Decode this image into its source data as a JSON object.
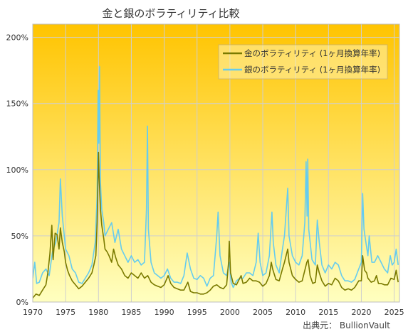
{
  "chart_data": {
    "type": "line",
    "title": "金と銀のボラティリティ比較",
    "xlabel": "",
    "ylabel": "",
    "xlim": [
      1970,
      2025.8
    ],
    "ylim": [
      0,
      210
    ],
    "x_ticks": [
      1970,
      1975,
      1980,
      1985,
      1990,
      1995,
      2000,
      2005,
      2010,
      2015,
      2020,
      2025
    ],
    "x_tick_labels": [
      "1970",
      "1975",
      "1980",
      "1985",
      "1990",
      "1995",
      "2000",
      "2005",
      "2010",
      "2015",
      "2020",
      "2025"
    ],
    "y_ticks": [
      0,
      50,
      100,
      150,
      200
    ],
    "y_tick_labels": [
      "0%",
      "50%",
      "100%",
      "150%",
      "200%"
    ],
    "grid": true,
    "legend_position": "top-right",
    "background_gradient": [
      "#ffc400",
      "#ffffc0"
    ],
    "series": [
      {
        "name": "金のボラティリティ (1ヶ月換算年率)",
        "color": "#7a7a00",
        "points": [
          [
            1970.0,
            3
          ],
          [
            1970.5,
            6
          ],
          [
            1971.0,
            5
          ],
          [
            1971.5,
            9
          ],
          [
            1972.0,
            13
          ],
          [
            1972.3,
            22
          ],
          [
            1972.6,
            36
          ],
          [
            1972.9,
            58
          ],
          [
            1973.1,
            32
          ],
          [
            1973.4,
            52
          ],
          [
            1973.7,
            51
          ],
          [
            1974.0,
            40
          ],
          [
            1974.2,
            56
          ],
          [
            1974.5,
            45
          ],
          [
            1974.8,
            38
          ],
          [
            1975.0,
            30
          ],
          [
            1975.3,
            24
          ],
          [
            1975.6,
            20
          ],
          [
            1976.0,
            16
          ],
          [
            1976.5,
            13
          ],
          [
            1977.0,
            10
          ],
          [
            1977.5,
            12
          ],
          [
            1978.0,
            15
          ],
          [
            1978.5,
            18
          ],
          [
            1979.0,
            22
          ],
          [
            1979.3,
            28
          ],
          [
            1979.6,
            35
          ],
          [
            1979.8,
            60
          ],
          [
            1980.0,
            113
          ],
          [
            1980.1,
            95
          ],
          [
            1980.3,
            70
          ],
          [
            1980.5,
            58
          ],
          [
            1980.8,
            48
          ],
          [
            1981.0,
            40
          ],
          [
            1981.3,
            38
          ],
          [
            1981.6,
            35
          ],
          [
            1982.0,
            30
          ],
          [
            1982.3,
            40
          ],
          [
            1982.6,
            34
          ],
          [
            1983.0,
            28
          ],
          [
            1983.5,
            25
          ],
          [
            1984.0,
            20
          ],
          [
            1984.5,
            18
          ],
          [
            1985.0,
            22
          ],
          [
            1985.5,
            20
          ],
          [
            1986.0,
            18
          ],
          [
            1986.5,
            22
          ],
          [
            1987.0,
            18
          ],
          [
            1987.5,
            20
          ],
          [
            1988.0,
            15
          ],
          [
            1988.5,
            13
          ],
          [
            1989.0,
            12
          ],
          [
            1989.5,
            11
          ],
          [
            1990.0,
            13
          ],
          [
            1990.6,
            20
          ],
          [
            1991.0,
            14
          ],
          [
            1991.5,
            11
          ],
          [
            1992.0,
            10
          ],
          [
            1992.5,
            9
          ],
          [
            1993.0,
            9
          ],
          [
            1993.6,
            15
          ],
          [
            1994.0,
            8
          ],
          [
            1994.5,
            7
          ],
          [
            1995.0,
            7
          ],
          [
            1995.5,
            6
          ],
          [
            1996.0,
            6
          ],
          [
            1996.5,
            7
          ],
          [
            1997.0,
            9
          ],
          [
            1997.5,
            12
          ],
          [
            1998.0,
            13
          ],
          [
            1998.5,
            11
          ],
          [
            1999.0,
            10
          ],
          [
            1999.5,
            13
          ],
          [
            1999.8,
            30
          ],
          [
            1999.9,
            46
          ],
          [
            2000.1,
            22
          ],
          [
            2000.5,
            14
          ],
          [
            2001.0,
            13
          ],
          [
            2001.7,
            20
          ],
          [
            2002.0,
            14
          ],
          [
            2002.5,
            15
          ],
          [
            2003.0,
            18
          ],
          [
            2003.5,
            16
          ],
          [
            2004.0,
            16
          ],
          [
            2004.5,
            15
          ],
          [
            2005.0,
            12
          ],
          [
            2005.5,
            14
          ],
          [
            2006.0,
            20
          ],
          [
            2006.3,
            30
          ],
          [
            2006.5,
            25
          ],
          [
            2007.0,
            17
          ],
          [
            2007.5,
            16
          ],
          [
            2008.0,
            25
          ],
          [
            2008.3,
            30
          ],
          [
            2008.8,
            40
          ],
          [
            2009.0,
            30
          ],
          [
            2009.5,
            20
          ],
          [
            2010.0,
            17
          ],
          [
            2010.5,
            15
          ],
          [
            2011.0,
            16
          ],
          [
            2011.7,
            30
          ],
          [
            2011.9,
            32
          ],
          [
            2012.2,
            20
          ],
          [
            2012.6,
            14
          ],
          [
            2013.0,
            15
          ],
          [
            2013.3,
            28
          ],
          [
            2013.6,
            22
          ],
          [
            2014.0,
            16
          ],
          [
            2014.5,
            12
          ],
          [
            2015.0,
            14
          ],
          [
            2015.5,
            13
          ],
          [
            2016.0,
            18
          ],
          [
            2016.5,
            16
          ],
          [
            2017.0,
            11
          ],
          [
            2017.5,
            9
          ],
          [
            2018.0,
            10
          ],
          [
            2018.5,
            9
          ],
          [
            2019.0,
            11
          ],
          [
            2019.6,
            16
          ],
          [
            2020.0,
            16
          ],
          [
            2020.2,
            35
          ],
          [
            2020.5,
            24
          ],
          [
            2020.8,
            22
          ],
          [
            2021.0,
            18
          ],
          [
            2021.5,
            15
          ],
          [
            2022.0,
            16
          ],
          [
            2022.3,
            20
          ],
          [
            2022.6,
            14
          ],
          [
            2023.0,
            14
          ],
          [
            2023.5,
            13
          ],
          [
            2024.0,
            13
          ],
          [
            2024.5,
            18
          ],
          [
            2025.0,
            17
          ],
          [
            2025.3,
            24
          ],
          [
            2025.6,
            15
          ]
        ]
      },
      {
        "name": "銀のボラティリティ (1ヶ月換算年率)",
        "color": "#66ccee",
        "points": [
          [
            1970.0,
            18
          ],
          [
            1970.3,
            30
          ],
          [
            1970.6,
            14
          ],
          [
            1971.0,
            15
          ],
          [
            1971.5,
            22
          ],
          [
            1972.0,
            25
          ],
          [
            1972.5,
            20
          ],
          [
            1973.0,
            38
          ],
          [
            1973.5,
            45
          ],
          [
            1974.0,
            60
          ],
          [
            1974.2,
            93
          ],
          [
            1974.5,
            65
          ],
          [
            1974.8,
            50
          ],
          [
            1975.0,
            40
          ],
          [
            1975.5,
            35
          ],
          [
            1976.0,
            25
          ],
          [
            1976.5,
            22
          ],
          [
            1977.0,
            15
          ],
          [
            1977.5,
            14
          ],
          [
            1978.0,
            18
          ],
          [
            1978.5,
            22
          ],
          [
            1979.0,
            28
          ],
          [
            1979.5,
            45
          ],
          [
            1979.8,
            80
          ],
          [
            1979.95,
            160
          ],
          [
            1980.05,
            120
          ],
          [
            1980.15,
            178
          ],
          [
            1980.3,
            90
          ],
          [
            1980.5,
            70
          ],
          [
            1980.8,
            60
          ],
          [
            1981.0,
            50
          ],
          [
            1981.5,
            55
          ],
          [
            1982.0,
            60
          ],
          [
            1982.5,
            45
          ],
          [
            1983.0,
            55
          ],
          [
            1983.5,
            40
          ],
          [
            1984.0,
            35
          ],
          [
            1984.5,
            30
          ],
          [
            1985.0,
            35
          ],
          [
            1985.5,
            30
          ],
          [
            1986.0,
            32
          ],
          [
            1986.5,
            28
          ],
          [
            1987.0,
            30
          ],
          [
            1987.3,
            70
          ],
          [
            1987.45,
            133
          ],
          [
            1987.6,
            55
          ],
          [
            1988.0,
            30
          ],
          [
            1988.5,
            22
          ],
          [
            1989.0,
            20
          ],
          [
            1989.5,
            18
          ],
          [
            1990.0,
            20
          ],
          [
            1990.5,
            25
          ],
          [
            1991.0,
            18
          ],
          [
            1991.5,
            15
          ],
          [
            1992.0,
            15
          ],
          [
            1992.5,
            14
          ],
          [
            1993.0,
            20
          ],
          [
            1993.5,
            37
          ],
          [
            1994.0,
            25
          ],
          [
            1994.5,
            18
          ],
          [
            1995.0,
            17
          ],
          [
            1995.5,
            20
          ],
          [
            1996.0,
            18
          ],
          [
            1996.5,
            12
          ],
          [
            1997.0,
            18
          ],
          [
            1997.5,
            20
          ],
          [
            1998.0,
            50
          ],
          [
            1998.2,
            68
          ],
          [
            1998.5,
            35
          ],
          [
            1999.0,
            22
          ],
          [
            1999.5,
            20
          ],
          [
            1999.9,
            30
          ],
          [
            2000.2,
            15
          ],
          [
            2000.5,
            11
          ],
          [
            2001.0,
            16
          ],
          [
            2001.5,
            18
          ],
          [
            2002.0,
            18
          ],
          [
            2002.5,
            22
          ],
          [
            2003.0,
            22
          ],
          [
            2003.5,
            20
          ],
          [
            2004.0,
            30
          ],
          [
            2004.3,
            52
          ],
          [
            2004.6,
            30
          ],
          [
            2005.0,
            20
          ],
          [
            2005.5,
            22
          ],
          [
            2006.0,
            35
          ],
          [
            2006.4,
            68
          ],
          [
            2006.6,
            45
          ],
          [
            2007.0,
            28
          ],
          [
            2007.5,
            22
          ],
          [
            2008.0,
            40
          ],
          [
            2008.3,
            50
          ],
          [
            2008.8,
            86
          ],
          [
            2009.0,
            50
          ],
          [
            2009.5,
            35
          ],
          [
            2010.0,
            30
          ],
          [
            2010.5,
            28
          ],
          [
            2011.0,
            35
          ],
          [
            2011.4,
            60
          ],
          [
            2011.6,
            106
          ],
          [
            2011.75,
            65
          ],
          [
            2011.85,
            108
          ],
          [
            2012.0,
            55
          ],
          [
            2012.5,
            32
          ],
          [
            2013.0,
            28
          ],
          [
            2013.3,
            62
          ],
          [
            2013.6,
            45
          ],
          [
            2014.0,
            28
          ],
          [
            2014.5,
            22
          ],
          [
            2015.0,
            28
          ],
          [
            2015.5,
            25
          ],
          [
            2016.0,
            30
          ],
          [
            2016.5,
            28
          ],
          [
            2017.0,
            20
          ],
          [
            2017.5,
            16
          ],
          [
            2018.0,
            16
          ],
          [
            2018.5,
            15
          ],
          [
            2019.0,
            17
          ],
          [
            2019.6,
            25
          ],
          [
            2020.0,
            30
          ],
          [
            2020.2,
            82
          ],
          [
            2020.4,
            55
          ],
          [
            2020.7,
            45
          ],
          [
            2021.0,
            35
          ],
          [
            2021.2,
            50
          ],
          [
            2021.6,
            30
          ],
          [
            2022.0,
            30
          ],
          [
            2022.5,
            35
          ],
          [
            2023.0,
            30
          ],
          [
            2023.5,
            25
          ],
          [
            2024.0,
            22
          ],
          [
            2024.4,
            35
          ],
          [
            2024.7,
            28
          ],
          [
            2025.0,
            30
          ],
          [
            2025.3,
            40
          ],
          [
            2025.6,
            28
          ]
        ]
      }
    ],
    "source": "出典元： BullionVault"
  }
}
